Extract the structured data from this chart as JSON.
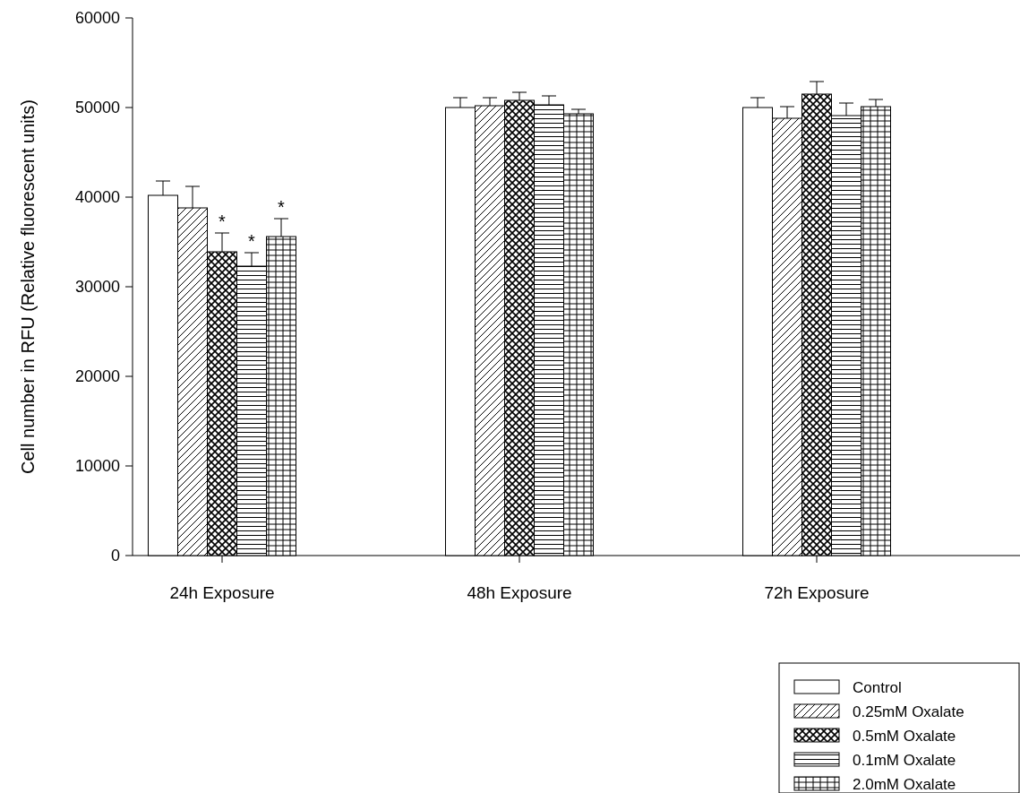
{
  "chart_data": {
    "type": "bar",
    "ylabel": "Cell number in RFU (Relative fluorescent units)",
    "categories": [
      "24h Exposure",
      "48h Exposure",
      "72h Exposure"
    ],
    "series": [
      {
        "name": "Control",
        "values": [
          40200,
          50000,
          50000
        ],
        "errors": [
          [
            40200,
            41800
          ],
          [
            50000,
            51100
          ],
          [
            50000,
            51100
          ]
        ]
      },
      {
        "name": "0.25mM Oxalate",
        "values": [
          38800,
          50200,
          48800
        ],
        "errors": [
          [
            38800,
            41200
          ],
          [
            50200,
            51100
          ],
          [
            48800,
            50100
          ]
        ]
      },
      {
        "name": "0.5mM Oxalate",
        "values": [
          33900,
          50800,
          51500
        ],
        "errors": [
          [
            33900,
            36000
          ],
          [
            50800,
            51700
          ],
          [
            51500,
            52900
          ]
        ],
        "value_labels": [
          "*",
          null,
          null
        ]
      },
      {
        "name": "0.1mM Oxalate",
        "values": [
          32300,
          50300,
          49100
        ],
        "errors": [
          [
            32300,
            33800
          ],
          [
            50300,
            51300
          ],
          [
            49100,
            50500
          ]
        ],
        "value_labels": [
          "*",
          null,
          null
        ]
      },
      {
        "name": "2.0mM Oxalate",
        "values": [
          35600,
          49300,
          50100
        ],
        "errors": [
          [
            35600,
            37600
          ],
          [
            49300,
            49800
          ],
          [
            50100,
            50900
          ]
        ],
        "value_labels": [
          "*",
          null,
          null
        ]
      }
    ],
    "ylim": [
      0,
      60000
    ],
    "yticks": [
      0,
      10000,
      20000,
      30000,
      40000,
      50000,
      60000
    ],
    "legend": "bottom right"
  }
}
